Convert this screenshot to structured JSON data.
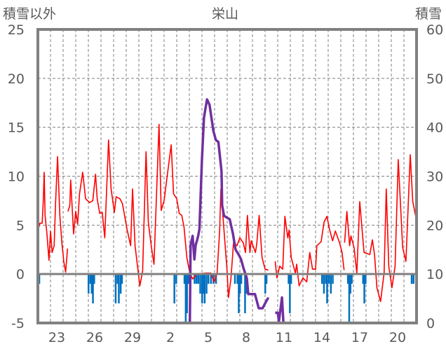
{
  "chart_data": {
    "type": "line",
    "title": "栄山",
    "ylabel_left": "積雪以外",
    "ylabel_right": "積雪",
    "ylim_left": [
      -5,
      25
    ],
    "ylim_right": [
      0,
      60
    ],
    "yticks_left": [
      "25",
      "20",
      "15",
      "10",
      "5",
      "0",
      "-5"
    ],
    "yticks_right": [
      "60",
      "50",
      "40",
      "30",
      "20",
      "10",
      "0"
    ],
    "x_days": 30,
    "xticks": [
      {
        "day": 1,
        "label": "23"
      },
      {
        "day": 4,
        "label": "26"
      },
      {
        "day": 7,
        "label": "29"
      },
      {
        "day": 10,
        "label": "2"
      },
      {
        "day": 13,
        "label": "5"
      },
      {
        "day": 16,
        "label": "8"
      },
      {
        "day": 19,
        "label": "11"
      },
      {
        "day": 22,
        "label": "14"
      },
      {
        "day": 25,
        "label": "17"
      },
      {
        "day": 28,
        "label": "20"
      }
    ],
    "grid": true,
    "colors": {
      "temp": "#ff0000",
      "snow": "#7030a0",
      "precip": "#0070c0",
      "frame": "#808080"
    },
    "series": [
      {
        "name": "temperature",
        "axis": "left",
        "segments": [
          [
            [
              0,
              4.4
            ],
            [
              0.16,
              5.2
            ],
            [
              0.34,
              5.2
            ],
            [
              0.43,
              7.5
            ],
            [
              0.5,
              10.4
            ],
            [
              0.57,
              6.0
            ],
            [
              0.72,
              4.1
            ],
            [
              0.88,
              1.4
            ],
            [
              1.0,
              4.4
            ],
            [
              1.13,
              2.2
            ],
            [
              1.29,
              2.9
            ],
            [
              1.4,
              7.2
            ],
            [
              1.56,
              12.0
            ],
            [
              1.74,
              6.0
            ],
            [
              1.92,
              2.9
            ],
            [
              2.0,
              2.0
            ],
            [
              2.05,
              1.3
            ],
            [
              2.2,
              0.2
            ],
            [
              2.35,
              2.6
            ]
          ],
          [
            [
              2.38,
              6.4
            ],
            [
              2.53,
              7.0
            ],
            [
              2.6,
              9.6
            ],
            [
              2.83,
              4.1
            ],
            [
              3.0,
              6.4
            ],
            [
              3.15,
              5.1
            ],
            [
              3.3,
              8.2
            ],
            [
              3.55,
              10.4
            ],
            [
              3.78,
              7.7
            ],
            [
              4.1,
              7.3
            ],
            [
              4.35,
              7.5
            ],
            [
              4.57,
              10.2
            ],
            [
              4.7,
              7.7
            ],
            [
              4.9,
              6.2
            ],
            [
              5.1,
              6.3
            ],
            [
              5.3,
              3.7
            ],
            [
              5.6,
              13.7
            ],
            [
              5.8,
              8.7
            ],
            [
              6.06,
              6.3
            ],
            [
              6.2,
              7.9
            ],
            [
              6.5,
              7.7
            ],
            [
              6.7,
              7.2
            ],
            [
              7.06,
              4.6
            ],
            [
              7.35,
              2.9
            ],
            [
              7.5,
              8.7
            ],
            [
              7.7,
              2.9
            ],
            [
              8.08,
              -1.2
            ],
            [
              8.3,
              0.3
            ],
            [
              8.57,
              12.5
            ],
            [
              8.75,
              5.3
            ],
            [
              8.98,
              2.9
            ],
            [
              9.2,
              1.0
            ],
            [
              9.6,
              15.3
            ],
            [
              9.77,
              6.5
            ],
            [
              10.0,
              7.5
            ],
            [
              10.56,
              13.2
            ],
            [
              10.75,
              8.2
            ],
            [
              11.0,
              7.7
            ],
            [
              11.2,
              6.2
            ],
            [
              11.4,
              6.0
            ],
            [
              11.58,
              4.8
            ],
            [
              11.8,
              1.7
            ],
            [
              12.04,
              0.1
            ],
            [
              12.26,
              -0.5
            ],
            [
              12.6,
              0
            ],
            [
              13.3,
              0.1
            ],
            [
              13.7,
              0.1
            ],
            [
              13.96,
              -0.8
            ],
            [
              14.2,
              0.1
            ],
            [
              14.4,
              4.4
            ],
            [
              14.5,
              8.7
            ],
            [
              14.75,
              4.4
            ],
            [
              14.98,
              0.5
            ],
            [
              15.1,
              -2.4
            ],
            [
              15.3,
              -0.4
            ],
            [
              15.5,
              3.2
            ],
            [
              15.77,
              2.9
            ],
            [
              16.0,
              3.7
            ],
            [
              16.27,
              3.2
            ],
            [
              16.45,
              2.2
            ],
            [
              16.6,
              6.0
            ],
            [
              16.8,
              2.2
            ],
            [
              16.9,
              3.4
            ],
            [
              17.24,
              2.2
            ],
            [
              17.35,
              3.2
            ],
            [
              17.53,
              6.0
            ],
            [
              17.76,
              1.7
            ],
            [
              18.0,
              0.5
            ],
            [
              18.26,
              0.4
            ]
          ],
          [
            [
              18.8,
              1.3
            ],
            [
              18.94,
              -0.4
            ],
            [
              19.16,
              0.8
            ],
            [
              19.4,
              0.5
            ],
            [
              19.57,
              5.9
            ],
            [
              19.8,
              3.7
            ],
            [
              19.9,
              4.5
            ],
            [
              20.07,
              1.7
            ],
            [
              20.4,
              0.1
            ],
            [
              20.5,
              1.0
            ],
            [
              20.7,
              -1.2
            ],
            [
              21.0,
              -0.4
            ],
            [
              21.3,
              -0.8
            ],
            [
              21.54,
              2.2
            ],
            [
              21.76,
              0.5
            ],
            [
              22.0,
              0.5
            ],
            [
              22.1,
              2.9
            ],
            [
              22.44,
              3.3
            ],
            [
              22.67,
              5.3
            ],
            [
              22.9,
              5.9
            ],
            [
              23.1,
              4.6
            ],
            [
              23.35,
              3.4
            ],
            [
              23.57,
              4.4
            ],
            [
              23.9,
              3.2
            ],
            [
              24.1,
              2.2
            ],
            [
              24.26,
              0.4
            ]
          ],
          [
            [
              24.3,
              3.2
            ],
            [
              24.48,
              6.4
            ],
            [
              24.7,
              2.9
            ],
            [
              24.8,
              3.9
            ],
            [
              25.05,
              2.7
            ],
            [
              25.27,
              0.1
            ],
            [
              25.5,
              7.4
            ],
            [
              25.84,
              2.2
            ],
            [
              26.3,
              2.0
            ],
            [
              26.5,
              3.5
            ],
            [
              26.67,
              2.0
            ],
            [
              26.86,
              -1.4
            ],
            [
              27.15,
              -2.8
            ],
            [
              27.43,
              0.1
            ],
            [
              27.6,
              8.7
            ],
            [
              27.8,
              0.8
            ],
            [
              28.05,
              -1.4
            ],
            [
              28.3,
              0.8
            ],
            [
              28.55,
              11.7
            ],
            [
              28.9,
              2.7
            ],
            [
              29.16,
              1.3
            ],
            [
              29.5,
              12.2
            ],
            [
              29.7,
              7.4
            ],
            [
              29.95,
              5.8
            ]
          ]
        ]
      },
      {
        "name": "snow_depth",
        "axis": "right",
        "segments": [
          [
            [
              0,
              0
            ],
            [
              12.04,
              0
            ],
            [
              12.1,
              15.9
            ],
            [
              12.26,
              17.8
            ],
            [
              12.4,
              13
            ],
            [
              12.5,
              15.9
            ],
            [
              12.6,
              16.8
            ],
            [
              12.7,
              17.8
            ],
            [
              12.8,
              19.2
            ],
            [
              13.0,
              33.5
            ],
            [
              13.16,
              42
            ],
            [
              13.4,
              45.7
            ],
            [
              13.6,
              44.6
            ],
            [
              13.9,
              39.3
            ],
            [
              14.1,
              37.4
            ],
            [
              14.3,
              37
            ],
            [
              14.55,
              31
            ],
            [
              14.6,
              24
            ],
            [
              14.75,
              21.9
            ],
            [
              15.2,
              21.2
            ],
            [
              15.45,
              18.3
            ],
            [
              15.66,
              15
            ],
            [
              15.9,
              14
            ],
            [
              16.1,
              13
            ],
            [
              16.3,
              11.1
            ],
            [
              16.55,
              9.2
            ],
            [
              16.67,
              5.9
            ],
            [
              16.9,
              5.9
            ],
            [
              17.2,
              5.9
            ],
            [
              17.5,
              3
            ],
            [
              17.8,
              3
            ],
            [
              18.0,
              4.0
            ],
            [
              18.26,
              5.2
            ]
          ],
          [
            [
              18.8,
              2.1
            ],
            [
              19.0,
              2.1
            ],
            [
              19.1,
              0.4
            ],
            [
              19.34,
              5.2
            ],
            [
              19.45,
              0.2
            ],
            [
              19.5,
              0
            ],
            [
              30,
              0
            ]
          ]
        ]
      },
      {
        "name": "precipitation",
        "axis": "left",
        "bars": [
          [
            0.0,
            -3
          ],
          [
            0.1,
            -1
          ],
          [
            4.0,
            -2
          ],
          [
            4.15,
            -1
          ],
          [
            4.25,
            -2
          ],
          [
            4.35,
            -3
          ],
          [
            4.45,
            -1
          ],
          [
            6.15,
            -3
          ],
          [
            6.3,
            -1
          ],
          [
            6.4,
            -3
          ],
          [
            6.55,
            -2
          ],
          [
            6.65,
            -1
          ],
          [
            10.8,
            -3
          ],
          [
            10.95,
            -1
          ],
          [
            11.6,
            -1
          ],
          [
            11.7,
            -5
          ],
          [
            11.8,
            -4
          ],
          [
            11.9,
            -1
          ],
          [
            12.0,
            -1
          ],
          [
            12.4,
            -1
          ],
          [
            12.55,
            -1
          ],
          [
            12.7,
            -1
          ],
          [
            12.85,
            -2
          ],
          [
            13.0,
            -3
          ],
          [
            13.1,
            -2
          ],
          [
            13.2,
            -3
          ],
          [
            13.35,
            -2
          ],
          [
            13.5,
            -1
          ],
          [
            13.7,
            -1
          ],
          [
            13.9,
            -1
          ],
          [
            14.1,
            -1
          ],
          [
            15.6,
            -1
          ],
          [
            15.8,
            -1
          ],
          [
            15.9,
            -4
          ],
          [
            16.0,
            -2
          ],
          [
            16.1,
            -1
          ],
          [
            16.4,
            -4
          ],
          [
            16.5,
            -2
          ],
          [
            18.0,
            -2
          ],
          [
            18.1,
            -1
          ],
          [
            19.85,
            -1
          ],
          [
            19.95,
            -4
          ],
          [
            20.05,
            -1
          ],
          [
            22.5,
            -1
          ],
          [
            22.65,
            -2
          ],
          [
            22.8,
            -1
          ],
          [
            22.9,
            -3
          ],
          [
            23.05,
            -1
          ],
          [
            23.2,
            -2
          ],
          [
            23.35,
            -1
          ],
          [
            24.55,
            -1
          ],
          [
            24.65,
            -5
          ],
          [
            24.75,
            -2
          ],
          [
            24.85,
            -1
          ],
          [
            25.75,
            -1
          ],
          [
            25.85,
            -3
          ],
          [
            25.95,
            -1
          ],
          [
            29.6,
            -1
          ],
          [
            29.75,
            -1
          ]
        ]
      }
    ]
  }
}
